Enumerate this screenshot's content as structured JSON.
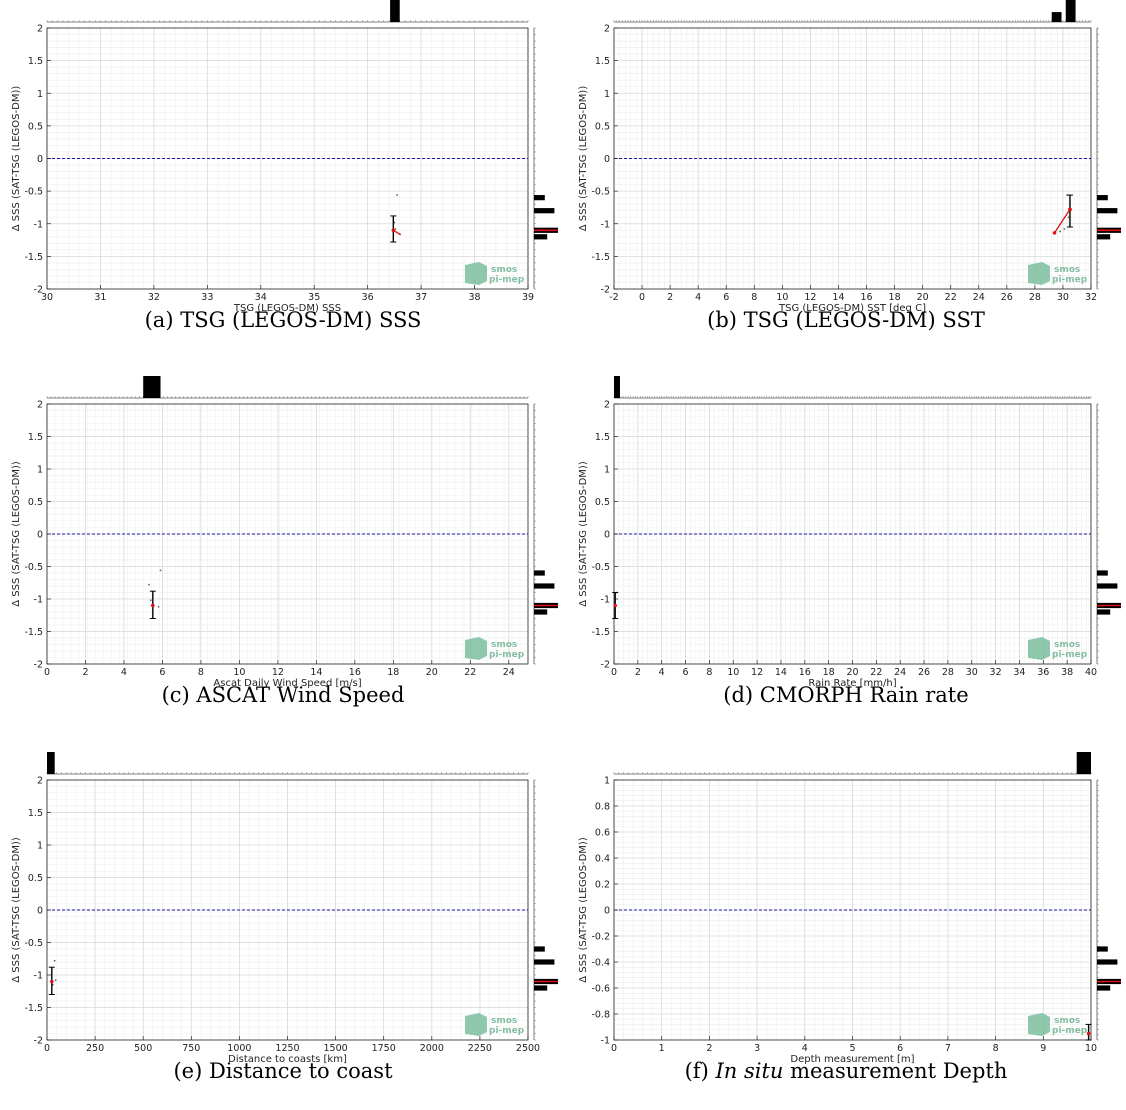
{
  "panels": [
    {
      "id": "a",
      "caption": "(a) TSG (LEGOS-DM) SSS",
      "watermark": [
        "smos",
        "pi-mep"
      ],
      "chart_data": {
        "type": "scatter",
        "xlabel": "TSG (LEGOS-DM) SSS",
        "ylabel": "Δ SSS (SAT-TSG (LEGOS-DM))",
        "xlim": [
          30,
          39
        ],
        "ylim": [
          -2,
          2
        ],
        "xticks": [
          30,
          31,
          32,
          33,
          34,
          35,
          36,
          37,
          38,
          39
        ],
        "yticks": [
          2,
          1.5,
          1,
          0.5,
          0,
          -0.5,
          -1,
          -1.5,
          -2
        ],
        "zero_line": 0,
        "grid": true,
        "points": [
          [
            36.55,
            -0.56
          ],
          [
            36.52,
            -1.08
          ],
          [
            36.6,
            -1.16
          ],
          [
            36.5,
            -0.98
          ]
        ],
        "errorbars": [
          {
            "x": 36.48,
            "mean": -1.1,
            "low": -1.28,
            "high": -0.88
          }
        ],
        "mean_line": [
          [
            36.48,
            -1.1
          ],
          [
            36.62,
            -1.17
          ]
        ],
        "top_histogram": [
          {
            "x0": 36.42,
            "x1": 36.6,
            "h": 1.0
          }
        ],
        "right_histogram": [
          {
            "y0": -0.64,
            "y1": -0.56,
            "w": 0.45
          },
          {
            "y0": -0.84,
            "y1": -0.76,
            "w": 0.85
          },
          {
            "y0": -1.14,
            "y1": -1.06,
            "w": 1.0
          },
          {
            "y0": -1.24,
            "y1": -1.16,
            "w": 0.55
          }
        ],
        "right_hist_mean": -1.1
      }
    },
    {
      "id": "b",
      "caption": "(b) TSG (LEGOS-DM) SST",
      "watermark": [
        "smos",
        "pi-mep"
      ],
      "chart_data": {
        "type": "scatter",
        "xlabel": "TSG (LEGOS-DM) SST [deg C]",
        "ylabel": "Δ SSS (SAT-TSG (LEGOS-DM))",
        "xlim": [
          -2,
          32
        ],
        "ylim": [
          -2,
          2
        ],
        "xticks": [
          -2,
          0,
          2,
          4,
          6,
          8,
          10,
          12,
          14,
          16,
          18,
          20,
          22,
          24,
          26,
          28,
          30,
          32
        ],
        "yticks": [
          2,
          1.5,
          1,
          0.5,
          0,
          -0.5,
          -1,
          -1.5,
          -2
        ],
        "zero_line": 0,
        "grid": true,
        "points": [
          [
            30.3,
            -0.56
          ],
          [
            30.4,
            -0.9
          ],
          [
            29.8,
            -1.12
          ],
          [
            30.1,
            -1.08
          ]
        ],
        "errorbars": [
          {
            "x": 30.5,
            "mean": -0.78,
            "low": -1.05,
            "high": -0.56
          }
        ],
        "mean_line": [
          [
            29.4,
            -1.14
          ],
          [
            30.5,
            -0.78
          ]
        ],
        "mean_points": [
          [
            29.4,
            -1.14
          ],
          [
            30.5,
            -0.78
          ]
        ],
        "top_histogram": [
          {
            "x0": 29.2,
            "x1": 29.9,
            "h": 0.45
          },
          {
            "x0": 30.2,
            "x1": 30.9,
            "h": 1.0
          }
        ],
        "right_histogram": [
          {
            "y0": -0.64,
            "y1": -0.56,
            "w": 0.45
          },
          {
            "y0": -0.84,
            "y1": -0.76,
            "w": 0.85
          },
          {
            "y0": -1.14,
            "y1": -1.06,
            "w": 1.0
          },
          {
            "y0": -1.24,
            "y1": -1.16,
            "w": 0.55
          }
        ],
        "right_hist_mean": -1.1
      }
    },
    {
      "id": "c",
      "caption": "(c) ASCAT Wind Speed",
      "watermark": [
        "smos",
        "pi-mep"
      ],
      "chart_data": {
        "type": "scatter",
        "xlabel": "Ascat Daily Wind Speed [m/s]",
        "ylabel": "Δ SSS (SAT-TSG (LEGOS-DM))",
        "xlim": [
          0,
          25
        ],
        "ylim": [
          -2,
          2
        ],
        "xticks": [
          0,
          2,
          4,
          6,
          8,
          10,
          12,
          14,
          16,
          18,
          20,
          22,
          24
        ],
        "yticks": [
          2,
          1.5,
          1,
          0.5,
          0,
          -0.5,
          -1,
          -1.5,
          -2
        ],
        "zero_line": 0,
        "grid": true,
        "points": [
          [
            5.3,
            -0.78
          ],
          [
            5.9,
            -0.56
          ],
          [
            5.8,
            -1.12
          ],
          [
            5.4,
            -1.02
          ]
        ],
        "errorbars": [
          {
            "x": 5.5,
            "mean": -1.1,
            "low": -1.3,
            "high": -0.88
          }
        ],
        "mean_line": [],
        "top_histogram": [
          {
            "x0": 5.0,
            "x1": 5.9,
            "h": 1.0
          }
        ],
        "right_histogram": [
          {
            "y0": -0.64,
            "y1": -0.56,
            "w": 0.45
          },
          {
            "y0": -0.84,
            "y1": -0.76,
            "w": 0.85
          },
          {
            "y0": -1.14,
            "y1": -1.06,
            "w": 1.0
          },
          {
            "y0": -1.24,
            "y1": -1.16,
            "w": 0.55
          }
        ],
        "right_hist_mean": -1.1
      }
    },
    {
      "id": "d",
      "caption": "(d) CMORPH Rain rate",
      "watermark": [
        "smos",
        "pi-mep"
      ],
      "chart_data": {
        "type": "scatter",
        "xlabel": "Rain Rate [mm/h]",
        "ylabel": "Δ SSS (SAT-TSG (LEGOS-DM))",
        "xlim": [
          0,
          40
        ],
        "ylim": [
          -2,
          2
        ],
        "xticks": [
          0,
          2,
          4,
          6,
          8,
          10,
          12,
          14,
          16,
          18,
          20,
          22,
          24,
          26,
          28,
          30,
          32,
          34,
          36,
          38,
          40
        ],
        "yticks": [
          2,
          1.5,
          1,
          0.5,
          0,
          -0.5,
          -1,
          -1.5,
          -2
        ],
        "zero_line": 0,
        "grid": true,
        "points": [
          [
            0.2,
            -0.9
          ]
        ],
        "errorbars": [
          {
            "x": 0.1,
            "mean": -1.1,
            "low": -1.3,
            "high": -0.9
          }
        ],
        "mean_line": [],
        "top_histogram": [
          {
            "x0": 0.0,
            "x1": 0.5,
            "h": 1.0
          }
        ],
        "right_histogram": [
          {
            "y0": -0.64,
            "y1": -0.56,
            "w": 0.45
          },
          {
            "y0": -0.84,
            "y1": -0.76,
            "w": 0.85
          },
          {
            "y0": -1.14,
            "y1": -1.06,
            "w": 1.0
          },
          {
            "y0": -1.24,
            "y1": -1.16,
            "w": 0.55
          }
        ],
        "right_hist_mean": -1.1
      }
    },
    {
      "id": "e",
      "caption": "(e) Distance to coast",
      "watermark": [
        "smos",
        "pi-mep"
      ],
      "chart_data": {
        "type": "scatter",
        "xlabel": "Distance to coasts [km]",
        "ylabel": "Δ SSS (SAT-TSG (LEGOS-DM))",
        "xlim": [
          0,
          2500
        ],
        "ylim": [
          -2,
          2
        ],
        "xticks": [
          0,
          250,
          500,
          750,
          1000,
          1250,
          1500,
          1750,
          2000,
          2250,
          2500
        ],
        "yticks": [
          2,
          1.5,
          1,
          0.5,
          0,
          -0.5,
          -1,
          -1.5,
          -2
        ],
        "zero_line": 0,
        "grid": true,
        "points": [
          [
            40,
            -0.78
          ],
          [
            30,
            -1.15
          ],
          [
            45,
            -1.08
          ]
        ],
        "errorbars": [
          {
            "x": 25,
            "mean": -1.1,
            "low": -1.3,
            "high": -0.88
          }
        ],
        "mean_line": [],
        "top_histogram": [
          {
            "x0": 0,
            "x1": 40,
            "h": 1.0
          }
        ],
        "right_histogram": [
          {
            "y0": -0.64,
            "y1": -0.56,
            "w": 0.45
          },
          {
            "y0": -0.84,
            "y1": -0.76,
            "w": 0.85
          },
          {
            "y0": -1.14,
            "y1": -1.06,
            "w": 1.0
          },
          {
            "y0": -1.24,
            "y1": -1.16,
            "w": 0.55
          }
        ],
        "right_hist_mean": -1.1
      }
    },
    {
      "id": "f",
      "caption_prefix": "(f) ",
      "caption_italic": "In situ",
      "caption_suffix": " measurement Depth",
      "watermark": [
        "smos",
        "pi-mep"
      ],
      "chart_data": {
        "type": "scatter",
        "xlabel": "Depth measurement [m]",
        "ylabel": "Δ SSS (SAT-TSG (LEGOS-DM))",
        "xlim": [
          0,
          10
        ],
        "ylim": [
          -1,
          1
        ],
        "xticks": [
          0,
          1,
          2,
          3,
          4,
          5,
          6,
          7,
          8,
          9,
          10
        ],
        "yticks": [
          1,
          0.8,
          0.6,
          0.4,
          0.2,
          0,
          -0.2,
          -0.4,
          -0.6,
          -0.8,
          -1
        ],
        "zero_line": 0,
        "grid": true,
        "points": [],
        "errorbars": [
          {
            "x": 9.95,
            "mean": -0.95,
            "low": -1.0,
            "high": -0.88
          }
        ],
        "mean_line": [],
        "top_histogram": [
          {
            "x0": 9.7,
            "x1": 10.0,
            "h": 1.0
          }
        ],
        "right_histogram": [
          {
            "y0": -0.32,
            "y1": -0.28,
            "w": 0.45
          },
          {
            "y0": -0.42,
            "y1": -0.38,
            "w": 0.85
          },
          {
            "y0": -0.57,
            "y1": -0.53,
            "w": 1.0
          },
          {
            "y0": -0.62,
            "y1": -0.58,
            "w": 0.55
          }
        ],
        "right_hist_mean": -0.55
      }
    }
  ]
}
